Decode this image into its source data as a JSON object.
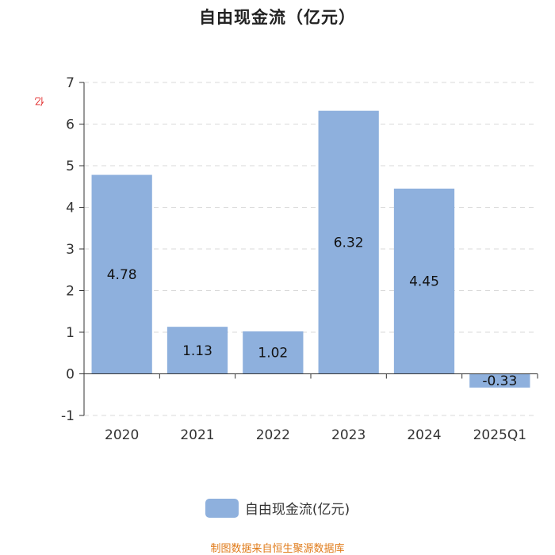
{
  "chart_data": {
    "type": "bar",
    "title": "自由现金流（亿元）",
    "ylabel": "亿",
    "xlabel": "",
    "categories": [
      "2020",
      "2021",
      "2022",
      "2023",
      "2024",
      "2025Q1"
    ],
    "series": [
      {
        "name": "自由现金流(亿元)",
        "values": [
          4.78,
          1.13,
          1.02,
          6.32,
          4.45,
          -0.33
        ],
        "value_labels": [
          "4.78",
          "1.13",
          "1.02",
          "6.32",
          "4.45",
          "-0.33"
        ]
      }
    ],
    "ylim": [
      -1,
      7
    ],
    "yticks": [
      "-1",
      "0",
      "1",
      "2",
      "3",
      "4",
      "5",
      "6",
      "7"
    ],
    "grid": true,
    "legend_position": "bottom"
  },
  "colors": {
    "bar": "#8eb0dd",
    "unit_label": "#e02020",
    "source": "#e07b1a"
  },
  "source_text": "制图数据来自恒生聚源数据库"
}
